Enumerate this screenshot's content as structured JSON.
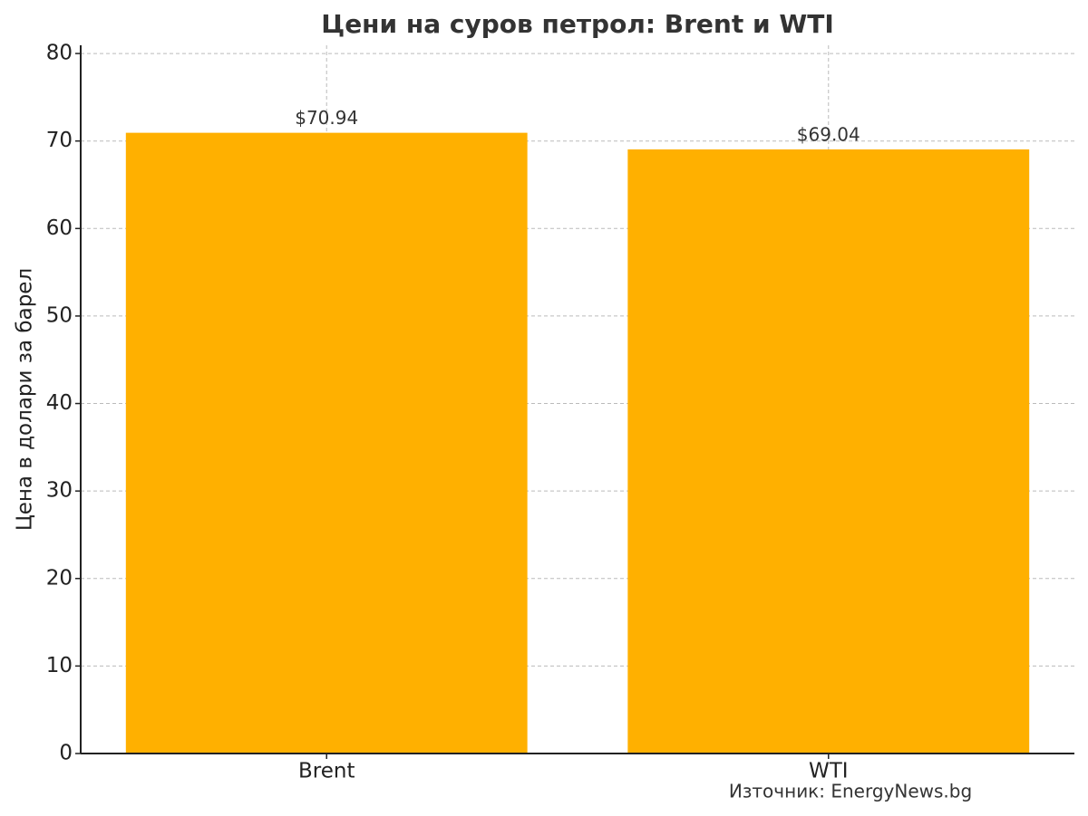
{
  "chart_data": {
    "type": "bar",
    "title": "Цени на суров петрол: Brent и WTI",
    "y_label": "Цена в долари за барел",
    "categories": [
      "Brent",
      "WTI"
    ],
    "values": [
      70.94,
      69.04
    ],
    "value_labels": [
      "$70.94",
      "$69.04"
    ],
    "color": "#ffb000",
    "ylim": [
      0,
      80.94
    ],
    "yticks": [
      0,
      10,
      20,
      30,
      40,
      50,
      60,
      70,
      80
    ],
    "grid": true,
    "annotation": "Източник: EnergyNews.bg"
  }
}
